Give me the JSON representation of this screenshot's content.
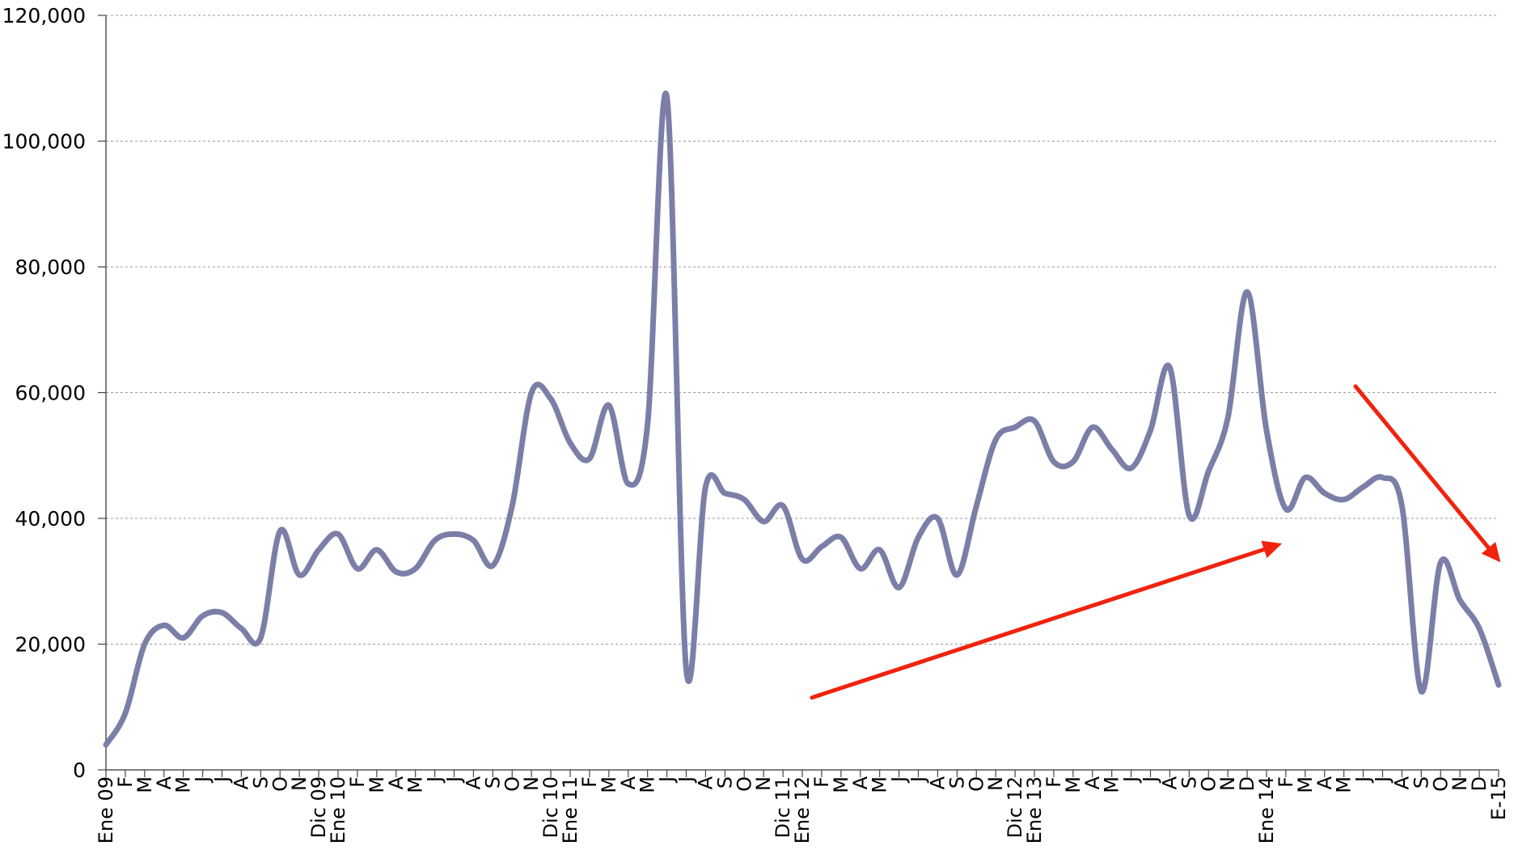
{
  "chart_data": {
    "type": "line",
    "title": "",
    "xlabel": "",
    "ylabel": "",
    "ylim": [
      0,
      120000
    ],
    "yticks": [
      0,
      20000,
      40000,
      60000,
      80000,
      100000,
      120000
    ],
    "ytick_labels": [
      "0",
      "20,000",
      "40,000",
      "60,000",
      "80,000",
      "100,000",
      "120,000"
    ],
    "grid": "horizontal dashed",
    "line_color": "#7b7fa8",
    "arrow_color": "#f0230f",
    "tick_labels": [
      "Ene 09",
      "F",
      "M",
      "A",
      "M",
      "J",
      "J",
      "A",
      "S",
      "O",
      "N",
      "Dic 09",
      "Ene 10",
      "F",
      "M",
      "A",
      "M",
      "J",
      "J",
      "A",
      "S",
      "O",
      "N",
      "Dic 10",
      "Ene 11",
      "F",
      "M",
      "A",
      "M",
      "J",
      "J",
      "A",
      "S",
      "O",
      "N",
      "Dic 11",
      "Ene 12",
      "F",
      "M",
      "A",
      "M",
      "J",
      "J",
      "A",
      "S",
      "O",
      "N",
      "Dic 12",
      "Ene 13",
      "F",
      "M",
      "A",
      "M",
      "J",
      "J",
      "A",
      "S",
      "O",
      "N",
      "D",
      "Ene 14",
      "F",
      "M",
      "A",
      "M",
      "J",
      "J",
      "A",
      "S",
      "O",
      "N",
      "D",
      "E-15"
    ],
    "values": [
      4000,
      9000,
      20000,
      23000,
      21000,
      24500,
      25000,
      22500,
      21000,
      38000,
      31000,
      35000,
      37500,
      32000,
      35000,
      31500,
      32000,
      36500,
      37500,
      36500,
      32500,
      42000,
      60000,
      59000,
      52000,
      49500,
      58000,
      45500,
      55000,
      107000,
      16000,
      45000,
      44000,
      43000,
      39500,
      42000,
      33500,
      35500,
      37000,
      32000,
      35000,
      29000,
      37000,
      40000,
      31000,
      42000,
      52500,
      54500,
      55500,
      49000,
      49000,
      54500,
      51000,
      48000,
      54000,
      64000,
      40500,
      47500,
      56000,
      76000,
      54000,
      41500,
      46500,
      44000,
      43000,
      45000,
      46500,
      42000,
      12500,
      33000,
      27000,
      22500,
      13500
    ],
    "annotations": [
      {
        "type": "arrow",
        "direction": "up-right",
        "from": [
          36.5,
          11500
        ],
        "to": [
          60.8,
          36000
        ]
      },
      {
        "type": "arrow",
        "direction": "down-right",
        "from": [
          64.6,
          61000
        ],
        "to": [
          72.1,
          33000
        ]
      }
    ]
  }
}
